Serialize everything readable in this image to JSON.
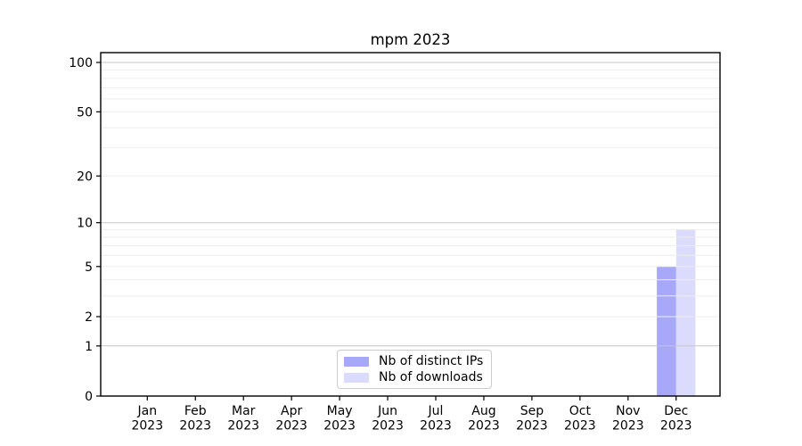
{
  "chart_data": {
    "type": "bar",
    "title": "mpm 2023",
    "categories": [
      "Jan 2023",
      "Feb 2023",
      "Mar 2023",
      "Apr 2023",
      "May 2023",
      "Jun 2023",
      "Jul 2023",
      "Aug 2023",
      "Sep 2023",
      "Oct 2023",
      "Nov 2023",
      "Dec 2023"
    ],
    "series": [
      {
        "name": "Nb of distinct IPs",
        "color": "#0000ee",
        "alpha": 0.34,
        "values": [
          0,
          0,
          0,
          0,
          0,
          0,
          0,
          0,
          0,
          0,
          0,
          5
        ]
      },
      {
        "name": "Nb of downloads",
        "color": "#0000ee",
        "alpha": 0.14,
        "values": [
          0,
          0,
          0,
          0,
          0,
          0,
          0,
          0,
          0,
          0,
          0,
          9
        ]
      }
    ],
    "xlabel": "",
    "ylabel": "",
    "yscale": "log1p",
    "ylim": [
      0,
      114
    ],
    "y_tick_values": [
      100,
      50,
      20,
      10,
      5,
      2,
      1,
      0
    ],
    "y_major_grid": [
      1,
      10,
      100
    ],
    "y_minor_grid": [
      2,
      3,
      4,
      5,
      6,
      7,
      8,
      9,
      20,
      30,
      40,
      50,
      60,
      70,
      80,
      90
    ],
    "grid": true,
    "legend_position": "lower center",
    "colors": {
      "background": "#ffffff",
      "spine": "#000000",
      "major_grid": "#c6c6c6",
      "minor_grid": "#ededed",
      "tick_label": "#000000",
      "legend_border": "#cccccc"
    }
  }
}
